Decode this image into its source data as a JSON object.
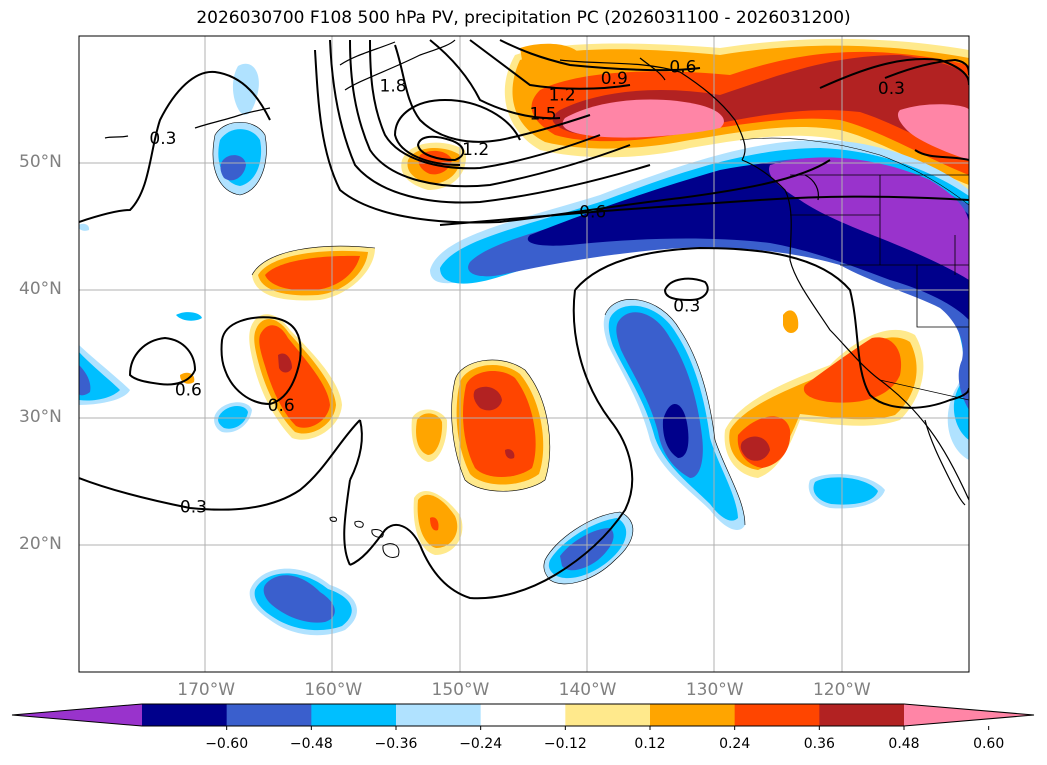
{
  "title": "2026030700 F108 500 hPa PV, precipitation PC (2026031100 - 2026031200)",
  "map": {
    "lat_ticks": [
      {
        "label": "50°N",
        "lat": 50
      },
      {
        "label": "40°N",
        "lat": 40
      },
      {
        "label": "30°N",
        "lat": 30
      },
      {
        "label": "20°N",
        "lat": 20
      }
    ],
    "lon_ticks": [
      {
        "label": "170°W",
        "lon": -170
      },
      {
        "label": "160°W",
        "lon": -160
      },
      {
        "label": "150°W",
        "lon": -150
      },
      {
        "label": "140°W",
        "lon": -140
      },
      {
        "label": "130°W",
        "lon": -130
      },
      {
        "label": "120°W",
        "lon": -120
      }
    ],
    "extent": {
      "lon_min": -180,
      "lon_max": -110,
      "lat_min": 10,
      "lat_max": 60
    },
    "contour_labels": [
      {
        "text": "0.3",
        "lon": -173.4,
        "lat": 52.0
      },
      {
        "text": "1.8",
        "lon": -155.3,
        "lat": 56.1
      },
      {
        "text": "1.5",
        "lon": -143.5,
        "lat": 53.9
      },
      {
        "text": "1.2",
        "lon": -142.0,
        "lat": 55.4
      },
      {
        "text": "0.9",
        "lon": -137.9,
        "lat": 56.7
      },
      {
        "text": "0.6",
        "lon": -132.5,
        "lat": 57.6
      },
      {
        "text": "1.2",
        "lon": -148.8,
        "lat": 51.1
      },
      {
        "text": "0.6",
        "lon": -139.6,
        "lat": 46.2
      },
      {
        "text": "0.3",
        "lon": -116.1,
        "lat": 55.9
      },
      {
        "text": "0.3",
        "lon": -132.2,
        "lat": 38.8
      },
      {
        "text": "0.6",
        "lon": -171.4,
        "lat": 32.2
      },
      {
        "text": "0.6",
        "lon": -164.1,
        "lat": 31.0
      },
      {
        "text": "0.3",
        "lon": -171.0,
        "lat": 23.0
      }
    ]
  },
  "colorbar": {
    "colors": [
      "#9933cc",
      "#00008b",
      "#3a5fcd",
      "#00bfff",
      "#b0e2ff",
      "#ffffff",
      "#ffe98c",
      "#ffa500",
      "#ff4500",
      "#b22222",
      "#ff85a6"
    ],
    "tick_labels": [
      "−0.60",
      "−0.48",
      "−0.36",
      "−0.24",
      "−0.12",
      "0.12",
      "0.24",
      "0.36",
      "0.48",
      "0.60"
    ]
  },
  "colors": {
    "gridline": "#b0b0b0",
    "axis_label": "#808080",
    "contour": "#000000"
  }
}
